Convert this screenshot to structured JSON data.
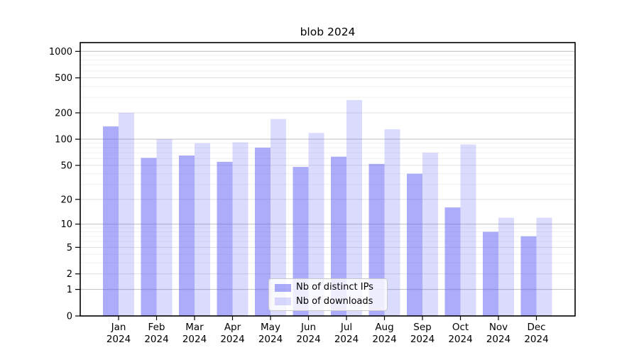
{
  "chart_data": {
    "type": "bar",
    "title": "blob 2024",
    "categories": [
      "Jan",
      "Feb",
      "Mar",
      "Apr",
      "May",
      "Jun",
      "Jul",
      "Aug",
      "Sep",
      "Oct",
      "Nov",
      "Dec"
    ],
    "x_tick_second_line": "2024",
    "series": [
      {
        "name": "Nb of distinct IPs",
        "color": "rgba(90,90,245,0.50)",
        "values": [
          140,
          61,
          65,
          55,
          80,
          48,
          63,
          52,
          40,
          16,
          8,
          7
        ]
      },
      {
        "name": "Nb of downloads",
        "color": "rgba(90,90,245,0.22)",
        "values": [
          200,
          100,
          90,
          92,
          170,
          118,
          280,
          130,
          70,
          87,
          12,
          12
        ]
      }
    ],
    "y_ticks": [
      0,
      1,
      2,
      5,
      10,
      20,
      50,
      100,
      200,
      500,
      1000
    ],
    "y_scale": "log1p",
    "ylim": [
      0,
      1200
    ],
    "grid": true,
    "legend_position": "lower center",
    "colors": {
      "major_grid": "#c6c6c6",
      "mid_grid": "#e0e0e0",
      "minor_grid": "#f0f0f0",
      "axis": "#000000",
      "text": "#000000"
    }
  }
}
